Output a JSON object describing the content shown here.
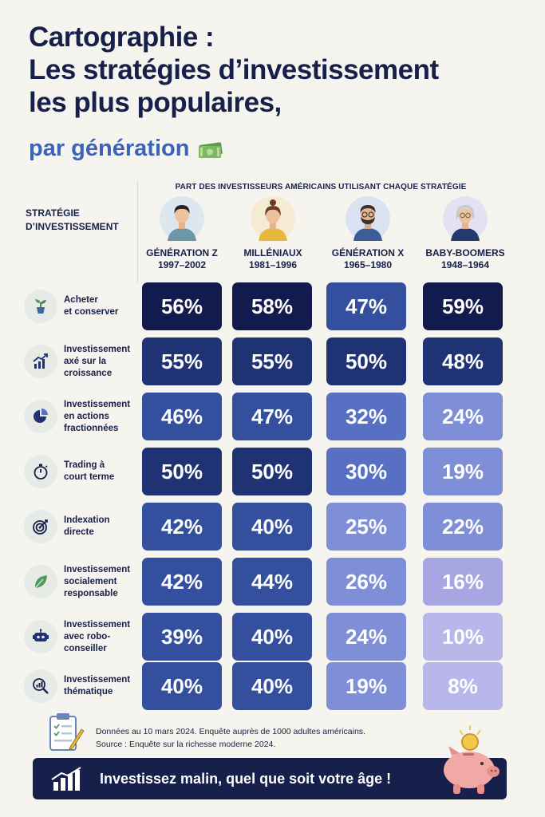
{
  "title_lines": [
    "Cartographie :",
    "Les stratégies d’investissement",
    "les plus populaires,"
  ],
  "subtitle": "par génération",
  "column_super_header": "PART DES INVESTISSEURS AMÉRICAINS UTILISANT CHAQUE STRATÉGIE",
  "row_header_lines": [
    "STRATÉGIE",
    "D’INVESTISSEMENT"
  ],
  "footnote_lines": [
    "Données au 10 mars 2024. Enquête auprès de 1000 adultes américains.",
    "Source : Enquête sur la richesse moderne 2024."
  ],
  "banner_text": "Investissez malin, quel que soit votre âge !",
  "icons": [
    "money-icon",
    "plant-icon",
    "growth-chart-icon",
    "pie-chart-icon",
    "stopwatch-icon",
    "target-icon",
    "leaf-icon",
    "robot-icon",
    "magnifier-chart-icon",
    "clipboard-icon",
    "bar-chart-icon",
    "piggy-bank-icon"
  ],
  "chart_data": {
    "type": "table",
    "unit": "%",
    "generations": [
      {
        "name": "GÉNÉRATION Z",
        "years": "1997–2002"
      },
      {
        "name": "MILLÉNIAUX",
        "years": "1981–1996"
      },
      {
        "name": "GÉNÉRATION X",
        "years": "1965–1980"
      },
      {
        "name": "BABY-BOOMERS",
        "years": "1948–1964"
      }
    ],
    "rows": [
      {
        "lines": [
          "Acheter",
          "et conserver"
        ],
        "values": [
          56,
          58,
          47,
          59
        ],
        "labels": [
          "56%",
          "58%",
          "47%",
          "59%"
        ]
      },
      {
        "lines": [
          "Investissement",
          "axé sur la",
          "croissance"
        ],
        "values": [
          55,
          55,
          50,
          48
        ],
        "labels": [
          "55%",
          "55%",
          "50%",
          "48%"
        ]
      },
      {
        "lines": [
          "Investissement",
          "en actions",
          "fractionnées"
        ],
        "values": [
          46,
          47,
          32,
          24
        ],
        "labels": [
          "46%",
          "47%",
          "32%",
          "24%"
        ]
      },
      {
        "lines": [
          "Trading à",
          "court terme"
        ],
        "values": [
          50,
          50,
          30,
          19
        ],
        "labels": [
          "50%",
          "50%",
          "30%",
          "19%"
        ]
      },
      {
        "lines": [
          "Indexation",
          "directe"
        ],
        "values": [
          42,
          40,
          25,
          22
        ],
        "labels": [
          "42%",
          "40%",
          "25%",
          "22%"
        ]
      },
      {
        "lines": [
          "Investissement",
          "socialement",
          "responsable"
        ],
        "values": [
          42,
          44,
          26,
          16
        ],
        "labels": [
          "42%",
          "44%",
          "26%",
          "16%"
        ]
      },
      {
        "lines": [
          "Investissement",
          "avec robo-",
          "conseiller"
        ],
        "values": [
          39,
          40,
          24,
          10
        ],
        "labels": [
          "39%",
          "40%",
          "24%",
          "10%"
        ]
      },
      {
        "lines": [
          "Investissement",
          "thématique"
        ],
        "values": [
          40,
          40,
          19,
          8
        ],
        "labels": [
          "40%",
          "40%",
          "19%",
          "8%"
        ]
      }
    ],
    "color_scale": [
      "#b9b7ea",
      "#a8a6e2",
      "#7f8fd7",
      "#5870c3",
      "#334f9e",
      "#1f3274",
      "#131a4d"
    ]
  }
}
